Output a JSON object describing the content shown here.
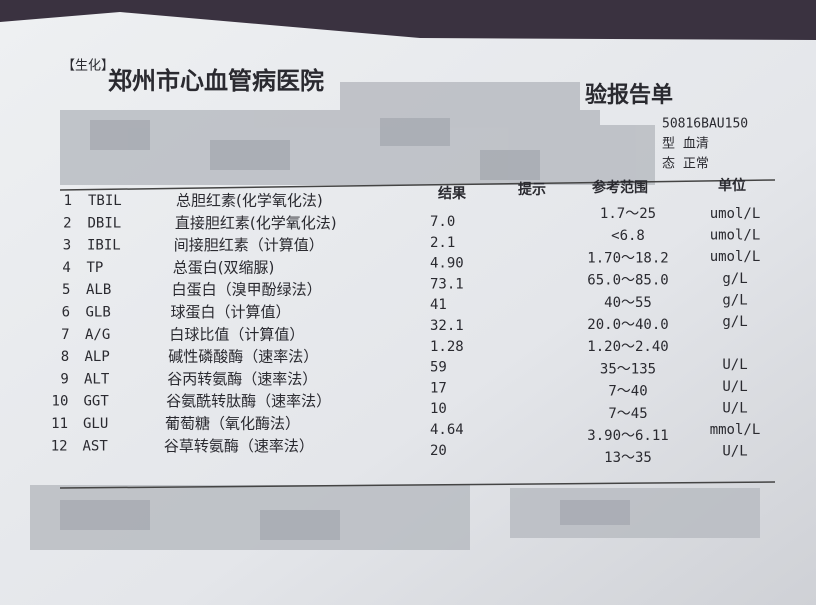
{
  "header": {
    "tag": "【生化】",
    "hospital": "郑州市心血管病医院",
    "title_fragment": "验报告单",
    "info": [
      "50816BAU150",
      "型 血清",
      "态 正常"
    ]
  },
  "table": {
    "columns": [
      "结果",
      "提示",
      "参考范围",
      "单位"
    ],
    "rows": [
      {
        "no": "1",
        "code": "TBIL",
        "name": "总胆红素(化学氧化法)",
        "result": "7.0",
        "range": "1.7～25",
        "unit": "umol/L"
      },
      {
        "no": "2",
        "code": "DBIL",
        "name": "直接胆红素(化学氧化法)",
        "result": "2.1",
        "range": "<6.8",
        "unit": "umol/L"
      },
      {
        "no": "3",
        "code": "IBIL",
        "name": "间接胆红素（计算值）",
        "result": "4.90",
        "range": "1.70～18.2",
        "unit": "umol/L"
      },
      {
        "no": "4",
        "code": "TP",
        "name": "总蛋白(双缩脲)",
        "result": "73.1",
        "range": "65.0～85.0",
        "unit": "g/L"
      },
      {
        "no": "5",
        "code": "ALB",
        "name": "白蛋白（溴甲酚绿法）",
        "result": "41",
        "range": "40～55",
        "unit": "g/L"
      },
      {
        "no": "6",
        "code": "GLB",
        "name": "球蛋白（计算值）",
        "result": "32.1",
        "range": "20.0～40.0",
        "unit": "g/L"
      },
      {
        "no": "7",
        "code": "A/G",
        "name": "白球比值（计算值）",
        "result": "1.28",
        "range": "1.20～2.40"
      },
      {
        "no": "8",
        "code": "ALP",
        "name": "碱性磷酸酶（速率法）",
        "result": "59",
        "range": "35～135",
        "unit": "U/L"
      },
      {
        "no": "9",
        "code": "ALT",
        "name": "谷丙转氨酶（速率法）",
        "result": "17",
        "range": "7～40",
        "unit": "U/L"
      },
      {
        "no": "10",
        "code": "GGT",
        "name": "谷氨酰转肽酶（速率法）",
        "result": "10",
        "range": "7～45",
        "unit": "U/L"
      },
      {
        "no": "11",
        "code": "GLU",
        "name": "葡萄糖（氧化酶法）",
        "result": "4.64",
        "range": "3.90～6.11",
        "unit": "mmol/L"
      },
      {
        "no": "12",
        "code": "AST",
        "name": "谷草转氨酶（速率法）",
        "result": "20",
        "range": "13～35",
        "unit": "U/L"
      }
    ]
  }
}
